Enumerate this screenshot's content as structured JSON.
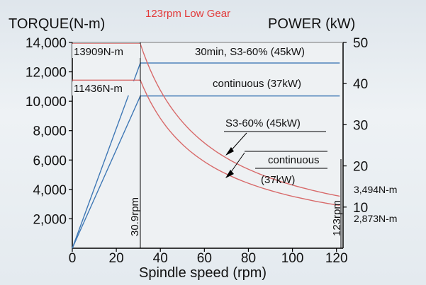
{
  "chart_data": {
    "type": "line",
    "title": "123rpm Low Gear",
    "left_axis_label": "TORQUE(N-m)",
    "right_axis_label": "POWER (kW)",
    "xlabel": "Spindle speed (rpm)",
    "x_ticks": [
      0,
      20,
      40,
      60,
      80,
      100,
      120
    ],
    "y_torque_ticks": [
      {
        "value": 2000,
        "label": "2,000"
      },
      {
        "value": 4000,
        "label": "4,000"
      },
      {
        "value": 6000,
        "label": "6,000"
      },
      {
        "value": 8000,
        "label": "8,000"
      },
      {
        "value": 10000,
        "label": "10,000"
      },
      {
        "value": 12000,
        "label": "12,000"
      },
      {
        "value": 14000,
        "label": "14,000"
      }
    ],
    "y_power_ticks": [
      {
        "value": 10,
        "label": "10"
      },
      {
        "value": 20,
        "label": "20"
      },
      {
        "value": 30,
        "label": "30"
      },
      {
        "value": 40,
        "label": "40"
      },
      {
        "value": 50,
        "label": "50"
      }
    ],
    "xlim": [
      0,
      123
    ],
    "ylim_torque": [
      0,
      14000
    ],
    "ylim_power": [
      0,
      50
    ],
    "base_speed_rpm": 30.9,
    "max_speed_rpm": 123,
    "series": [
      {
        "name": "30min, S3-60% (45kW)",
        "axis": "power",
        "color": "#3f78b5",
        "points": [
          [
            0,
            0
          ],
          [
            30.9,
            45
          ],
          [
            123,
            45
          ]
        ]
      },
      {
        "name": "continuous (37kW)",
        "axis": "power",
        "color": "#3f78b5",
        "points": [
          [
            0,
            0
          ],
          [
            30.9,
            37
          ],
          [
            123,
            37
          ]
        ]
      },
      {
        "name": "S3-60% (45kW)",
        "axis": "torque",
        "color": "#d86a6a",
        "constant": 13909,
        "power_kw": 45
      },
      {
        "name": "continuous (37kW)",
        "axis": "torque",
        "color": "#d86a6a",
        "constant": 11436,
        "power_kw": 37
      }
    ],
    "annotations": {
      "torque_peak_s3": "13909N-m",
      "torque_peak_cont": "11436N-m",
      "power_s3_label": "30min, S3-60% (45kW)",
      "power_cont_label": "continuous  (37kW)",
      "curve_s3_label": "S3-60% (45kW)",
      "curve_cont_label_1": "continuous",
      "curve_cont_label_2": "(37kW)",
      "base_speed_label": "30.9rpm",
      "max_speed_label": "123rpm",
      "torque_end_s3": "3,494N-m",
      "torque_end_cont": "2,873N-m"
    },
    "grid": false
  }
}
